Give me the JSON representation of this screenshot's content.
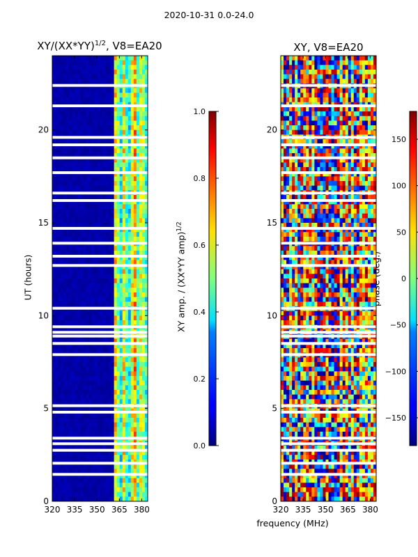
{
  "suptitle": "2020-10-31 0.0-24.0",
  "chart_data": [
    {
      "type": "heatmap",
      "title_base": "XY/(XX*YY)",
      "title_exp": "1/2",
      "title_suffix": ", V8=EA20",
      "ylabel": "UT (hours)",
      "xlabel": "",
      "xlim": [
        320,
        384
      ],
      "ylim": [
        0,
        24
      ],
      "xticks": [
        320,
        335,
        350,
        365,
        380
      ],
      "yticks": [
        0,
        5,
        10,
        15,
        20
      ],
      "colorbar": {
        "label_base": "XY amp. / (XX*YY amp)",
        "label_exp": "1/2",
        "range": [
          0.0,
          1.0
        ],
        "ticks": [
          "0.0",
          "0.2",
          "0.4",
          "0.6",
          "0.8",
          "1.0"
        ],
        "tick_values": [
          0.0,
          0.2,
          0.4,
          0.6,
          0.8,
          1.0
        ],
        "colormap": "jet"
      },
      "blank_rows_hours": [
        1.45,
        2.05,
        2.75,
        3.1,
        3.4,
        4.8,
        5.15,
        7.9,
        8.5,
        8.9,
        9.1,
        9.4,
        10.4,
        12.7,
        13.2,
        13.9,
        14.7,
        16.2,
        16.6,
        17.7,
        18.5,
        19.2,
        19.6,
        21.3,
        22.4
      ],
      "notes": "low values (~0.0) 320-362 MHz; high values (0.3-0.9) 362-382 MHz"
    },
    {
      "type": "heatmap",
      "title_base": "XY, V8=EA20",
      "ylabel": "",
      "xlabel": "frequency (MHz)",
      "xlim": [
        320,
        384
      ],
      "ylim": [
        0,
        24
      ],
      "xticks": [
        320,
        335,
        350,
        365,
        380
      ],
      "yticks": [
        0,
        5,
        10,
        15,
        20
      ],
      "colorbar": {
        "label": "phase (deg.)",
        "range": [
          -180,
          180
        ],
        "ticks": [
          "−150",
          "−100",
          "−50",
          "0",
          "50",
          "100",
          "150"
        ],
        "tick_values": [
          -150,
          -100,
          -50,
          0,
          50,
          100,
          150
        ],
        "colormap": "jet"
      },
      "blank_rows_hours": [
        1.45,
        2.05,
        2.75,
        3.1,
        3.4,
        4.8,
        5.15,
        7.9,
        8.5,
        8.9,
        9.1,
        9.4,
        10.4,
        12.7,
        13.2,
        13.9,
        14.7,
        16.2,
        16.6,
        17.7,
        18.5,
        19.2,
        19.6,
        21.3,
        22.4
      ],
      "notes": "phase varies widely, mostly -100 to 150 deg"
    }
  ]
}
